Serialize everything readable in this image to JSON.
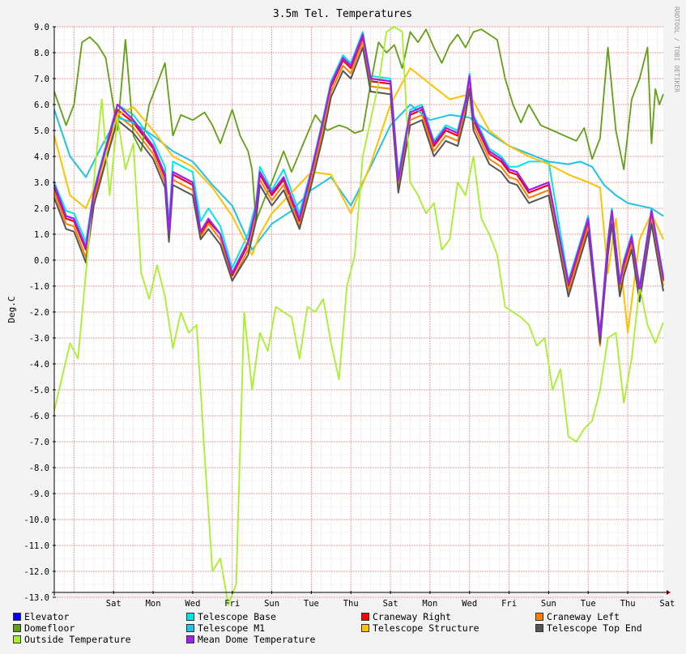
{
  "chart_data": {
    "type": "line",
    "title": "3.5m Tel. Temperatures",
    "ylabel": "Deg.C",
    "watermark": "RRDTOOL / TOBI OETIKER",
    "ylim": [
      -13.3,
      9.0
    ],
    "yticks": [
      "9.0",
      "8.0",
      "7.0",
      "6.0",
      "5.0",
      "4.0",
      "3.0",
      "2.0",
      "1.0",
      "0.0",
      "-1.0",
      "-2.0",
      "-3.0",
      "-4.0",
      "-5.0",
      "-6.0",
      "-7.0",
      "-8.0",
      "-9.0",
      "-10.0",
      "-11.0",
      "-12.0",
      "-13.0"
    ],
    "x_tick_labels": [
      "Sat",
      "Mon",
      "Wed",
      "Fri",
      "Sun",
      "Tue",
      "Thu",
      "Sat",
      "Mon",
      "Wed",
      "Fri",
      "Sun",
      "Tue",
      "Thu",
      "Sat"
    ],
    "x_tick_days": [
      1.5,
      2.5,
      3.5,
      4.5,
      5.5,
      6.5,
      7.5,
      8.5,
      9.5,
      10.5,
      11.5,
      12.5,
      13.5,
      14.5,
      15.5
    ],
    "xlim": [
      0,
      15.4
    ],
    "grid": true,
    "legend_position": "bottom",
    "series": [
      {
        "name": "Elevator",
        "color": "#0000ff",
        "x": [
          0,
          0.3,
          0.5,
          0.8,
          1.0,
          1.3,
          1.6,
          2.0,
          2.5,
          2.8,
          2.9,
          3.0,
          3.5,
          3.7,
          3.9,
          4.2,
          4.5,
          4.9,
          5.1,
          5.2,
          5.5,
          5.8,
          6.2,
          6.5,
          6.8,
          7.0,
          7.3,
          7.5,
          7.8,
          8.0,
          8.5,
          8.7,
          9.0,
          9.3,
          9.6,
          9.9,
          10.2,
          10.4,
          10.5,
          10.6,
          11.0,
          11.3,
          11.5,
          11.7,
          12.0,
          12.5,
          13.0,
          13.5,
          13.8,
          14.0,
          14.1,
          14.3,
          14.4,
          14.6,
          14.8,
          15.1,
          15.4
        ],
        "values": [
          2.8,
          1.6,
          1.5,
          0.4,
          2.5,
          4.2,
          5.8,
          5.3,
          4.3,
          3.2,
          1.0,
          3.3,
          2.9,
          1.0,
          1.5,
          1.0,
          -0.6,
          0.6,
          1.9,
          3.3,
          2.5,
          3.1,
          1.5,
          3.3,
          5.3,
          6.7,
          7.7,
          7.4,
          8.6,
          6.9,
          6.8,
          3.0,
          5.6,
          5.8,
          4.4,
          5.0,
          4.8,
          6.0,
          7.0,
          5.4,
          4.1,
          3.8,
          3.4,
          3.3,
          2.6,
          2.9,
          -1.0,
          1.5,
          -3.0,
          0.6,
          1.8,
          -1.0,
          -0.2,
          0.8,
          -1.2,
          1.8,
          -0.8
        ]
      },
      {
        "name": "Telescope Base",
        "color": "#00e6e6",
        "x": [
          0,
          0.3,
          0.5,
          0.8,
          1.0,
          1.3,
          1.6,
          2.0,
          2.5,
          2.8,
          2.9,
          3.0,
          3.5,
          3.7,
          3.9,
          4.2,
          4.5,
          4.9,
          5.1,
          5.2,
          5.5,
          5.8,
          6.2,
          6.5,
          6.8,
          7.0,
          7.3,
          7.5,
          7.8,
          8.0,
          8.5,
          8.7,
          9.0,
          9.3,
          9.6,
          9.9,
          10.2,
          10.4,
          10.5,
          10.6,
          11.0,
          11.3,
          11.5,
          11.7,
          12.0,
          12.5,
          13.0,
          13.5,
          13.8,
          14.0,
          14.1,
          14.3,
          14.4,
          14.6,
          14.8,
          15.1,
          15.4
        ],
        "values": [
          3.0,
          1.9,
          1.8,
          0.7,
          2.7,
          4.4,
          6.0,
          5.6,
          4.6,
          3.6,
          1.4,
          3.8,
          3.4,
          1.5,
          2.0,
          1.3,
          -0.3,
          1.0,
          2.2,
          3.6,
          2.7,
          3.5,
          1.8,
          3.5,
          5.5,
          6.9,
          7.9,
          7.6,
          8.8,
          7.1,
          7.0,
          3.3,
          5.8,
          6.0,
          4.6,
          5.2,
          5.0,
          6.2,
          7.2,
          5.6,
          4.3,
          4.0,
          3.6,
          3.6,
          3.8,
          3.8,
          -0.8,
          1.7,
          -2.8,
          0.8,
          2.0,
          -0.8,
          0.0,
          1.0,
          -1.0,
          2.0,
          -0.6
        ]
      },
      {
        "name": "Craneway Right",
        "color": "#ff0000",
        "x": [
          0,
          0.3,
          0.5,
          0.8,
          1.0,
          1.3,
          1.6,
          2.0,
          2.5,
          2.8,
          2.9,
          3.0,
          3.5,
          3.7,
          3.9,
          4.2,
          4.5,
          4.9,
          5.1,
          5.2,
          5.5,
          5.8,
          6.2,
          6.5,
          6.8,
          7.0,
          7.3,
          7.5,
          7.8,
          8.0,
          8.5,
          8.7,
          9.0,
          9.3,
          9.6,
          9.9,
          10.2,
          10.4,
          10.5,
          10.6,
          11.0,
          11.3,
          11.5,
          11.7,
          12.0,
          12.5,
          13.0,
          13.5,
          13.8,
          14.0,
          14.1,
          14.3,
          14.4,
          14.6,
          14.8,
          15.1,
          15.4
        ],
        "values": [
          2.8,
          1.6,
          1.5,
          0.4,
          2.5,
          4.2,
          5.8,
          5.3,
          4.3,
          3.2,
          1.0,
          3.3,
          2.9,
          1.0,
          1.5,
          1.0,
          -0.6,
          0.6,
          1.9,
          3.3,
          2.5,
          3.1,
          1.5,
          3.3,
          5.3,
          6.7,
          7.7,
          7.4,
          8.6,
          6.9,
          6.8,
          3.0,
          5.6,
          5.8,
          4.4,
          5.0,
          4.8,
          6.0,
          7.0,
          5.4,
          4.1,
          3.8,
          3.4,
          3.3,
          2.6,
          2.9,
          -1.0,
          1.5,
          -3.0,
          0.6,
          1.8,
          -1.0,
          -0.2,
          0.8,
          -1.2,
          1.8,
          -0.8
        ]
      },
      {
        "name": "Craneway Left",
        "color": "#ff8000",
        "x": [
          0,
          0.3,
          0.5,
          0.8,
          1.0,
          1.3,
          1.6,
          2.0,
          2.5,
          2.8,
          2.9,
          3.0,
          3.5,
          3.7,
          3.9,
          4.2,
          4.5,
          4.9,
          5.1,
          5.2,
          5.5,
          5.8,
          6.2,
          6.5,
          6.8,
          7.0,
          7.3,
          7.5,
          7.8,
          8.0,
          8.5,
          8.7,
          9.0,
          9.3,
          9.6,
          9.9,
          10.2,
          10.4,
          10.5,
          10.6,
          11.0,
          11.3,
          11.5,
          11.7,
          12.0,
          12.5,
          13.0,
          13.5,
          13.8,
          14.0,
          14.1,
          14.3,
          14.4,
          14.6,
          14.8,
          15.1,
          15.4
        ],
        "values": [
          2.6,
          1.4,
          1.3,
          0.1,
          2.3,
          4.0,
          5.6,
          5.1,
          4.1,
          3.0,
          0.9,
          3.1,
          2.7,
          0.9,
          1.4,
          0.8,
          -0.8,
          0.4,
          1.7,
          3.1,
          2.3,
          2.9,
          1.3,
          3.1,
          5.1,
          6.5,
          7.5,
          7.2,
          8.4,
          6.7,
          6.6,
          2.8,
          5.4,
          5.6,
          4.2,
          4.8,
          4.6,
          5.8,
          6.8,
          5.2,
          3.9,
          3.6,
          3.2,
          3.1,
          2.4,
          2.7,
          -1.2,
          1.3,
          -3.3,
          0.4,
          1.6,
          -1.2,
          -0.4,
          0.6,
          -1.4,
          1.6,
          -1.0
        ]
      },
      {
        "name": "Domefloor",
        "color": "#5fa015",
        "x": [
          0,
          0.3,
          0.5,
          0.7,
          0.9,
          1.1,
          1.3,
          1.6,
          1.8,
          2.0,
          2.2,
          2.4,
          2.6,
          2.8,
          3.0,
          3.2,
          3.5,
          3.8,
          4.0,
          4.2,
          4.5,
          4.7,
          4.9,
          5.0,
          5.1,
          5.3,
          5.5,
          5.8,
          6.0,
          6.3,
          6.6,
          6.9,
          7.2,
          7.4,
          7.6,
          7.8,
          8.0,
          8.2,
          8.4,
          8.6,
          8.8,
          9.0,
          9.2,
          9.4,
          9.6,
          9.8,
          10.0,
          10.2,
          10.4,
          10.6,
          10.8,
          11.0,
          11.2,
          11.4,
          11.6,
          11.8,
          12.0,
          12.3,
          12.6,
          12.9,
          13.2,
          13.4,
          13.6,
          13.8,
          14.0,
          14.2,
          14.4,
          14.6,
          14.8,
          15.0,
          15.1,
          15.2,
          15.3,
          15.4
        ],
        "values": [
          6.5,
          5.2,
          6.0,
          8.4,
          8.6,
          8.3,
          7.8,
          5.0,
          8.5,
          4.8,
          4.2,
          6.0,
          6.8,
          7.6,
          4.8,
          5.6,
          5.4,
          5.7,
          5.2,
          4.5,
          5.8,
          4.8,
          4.2,
          3.5,
          1.5,
          2.3,
          3.0,
          4.2,
          3.4,
          4.5,
          5.6,
          5.0,
          5.2,
          5.1,
          4.9,
          5.0,
          6.8,
          8.4,
          8.0,
          8.3,
          7.4,
          8.8,
          8.4,
          8.9,
          8.2,
          7.6,
          8.3,
          8.7,
          8.2,
          8.8,
          8.9,
          8.7,
          8.5,
          7.0,
          6.0,
          5.3,
          6.0,
          5.2,
          5.0,
          4.8,
          4.6,
          5.1,
          3.9,
          4.7,
          8.2,
          5.0,
          3.5,
          6.2,
          7.0,
          8.2,
          4.5,
          6.6,
          6.0,
          6.4
        ]
      },
      {
        "name": "Telescope M1",
        "color": "#1ec3e6",
        "x": [
          0,
          0.4,
          0.8,
          1.2,
          1.6,
          2.0,
          2.5,
          3.0,
          3.5,
          4.0,
          4.5,
          5.0,
          5.5,
          6.0,
          6.5,
          7.0,
          7.5,
          8.0,
          8.5,
          9.0,
          9.5,
          10.0,
          10.5,
          11.0,
          11.5,
          12.0,
          12.5,
          13.0,
          13.3,
          13.6,
          13.9,
          14.2,
          14.5,
          14.8,
          15.1,
          15.4
        ],
        "values": [
          5.8,
          4.0,
          3.2,
          4.4,
          5.5,
          5.3,
          4.8,
          4.2,
          3.8,
          2.9,
          2.1,
          0.4,
          1.4,
          1.9,
          2.7,
          3.2,
          2.1,
          3.6,
          5.2,
          6.0,
          5.4,
          5.6,
          5.5,
          4.9,
          4.4,
          4.1,
          3.8,
          3.7,
          3.8,
          3.6,
          2.9,
          2.5,
          2.2,
          2.1,
          2.0,
          1.7
        ]
      },
      {
        "name": "Telescope Structure",
        "color": "#ffc100",
        "x": [
          0,
          0.4,
          0.8,
          1.2,
          1.6,
          2.0,
          2.5,
          3.0,
          3.5,
          4.0,
          4.5,
          5.0,
          5.2,
          5.5,
          6.0,
          6.5,
          7.0,
          7.5,
          8.0,
          8.5,
          9.0,
          9.5,
          10.0,
          10.5,
          11.0,
          11.5,
          12.0,
          12.5,
          13.0,
          13.5,
          13.8,
          14.0,
          14.2,
          14.5,
          14.8,
          15.1,
          15.4
        ],
        "values": [
          4.8,
          2.5,
          2.0,
          3.5,
          5.6,
          5.9,
          5.0,
          4.0,
          3.6,
          2.8,
          1.7,
          0.2,
          1.0,
          1.8,
          2.6,
          3.4,
          3.3,
          1.8,
          3.7,
          6.0,
          7.4,
          6.8,
          6.2,
          6.4,
          5.0,
          4.4,
          4.0,
          3.7,
          3.3,
          3.0,
          2.8,
          -0.5,
          1.6,
          -2.8,
          0.8,
          1.8,
          0.8
        ]
      },
      {
        "name": "Telescope Top End",
        "color": "#555555",
        "x": [
          0,
          0.3,
          0.5,
          0.8,
          1.0,
          1.3,
          1.6,
          2.0,
          2.5,
          2.8,
          2.9,
          3.0,
          3.5,
          3.7,
          3.9,
          4.2,
          4.5,
          4.9,
          5.1,
          5.2,
          5.5,
          5.8,
          6.2,
          6.5,
          6.8,
          7.0,
          7.3,
          7.5,
          7.8,
          8.0,
          8.5,
          8.7,
          9.0,
          9.3,
          9.6,
          9.9,
          10.2,
          10.4,
          10.5,
          10.6,
          11.0,
          11.3,
          11.5,
          11.7,
          12.0,
          12.5,
          13.0,
          13.5,
          13.8,
          14.0,
          14.1,
          14.3,
          14.4,
          14.6,
          14.8,
          15.1,
          15.4
        ],
        "values": [
          2.4,
          1.2,
          1.1,
          -0.1,
          2.1,
          3.8,
          5.4,
          4.9,
          3.9,
          2.8,
          0.7,
          2.9,
          2.5,
          0.8,
          1.2,
          0.6,
          -0.8,
          0.2,
          1.5,
          2.9,
          2.1,
          2.7,
          1.2,
          2.9,
          4.8,
          6.3,
          7.3,
          7.0,
          8.2,
          6.5,
          6.4,
          2.6,
          5.2,
          5.4,
          4.0,
          4.6,
          4.4,
          5.6,
          6.6,
          5.0,
          3.7,
          3.4,
          3.0,
          2.9,
          2.2,
          2.5,
          -1.4,
          1.1,
          -3.2,
          0.2,
          1.4,
          -1.4,
          -0.6,
          0.4,
          -1.6,
          1.4,
          -1.2
        ]
      },
      {
        "name": "Outside Temperature",
        "color": "#a6f02c",
        "x": [
          0,
          0.2,
          0.4,
          0.6,
          0.8,
          1.0,
          1.2,
          1.4,
          1.6,
          1.8,
          2.0,
          2.2,
          2.4,
          2.6,
          2.8,
          3.0,
          3.2,
          3.4,
          3.6,
          3.8,
          4.0,
          4.2,
          4.4,
          4.6,
          4.8,
          5.0,
          5.2,
          5.4,
          5.6,
          5.8,
          6.0,
          6.2,
          6.4,
          6.6,
          6.8,
          7.0,
          7.2,
          7.4,
          7.6,
          7.8,
          8.0,
          8.2,
          8.4,
          8.6,
          8.8,
          9.0,
          9.2,
          9.4,
          9.6,
          9.8,
          10.0,
          10.2,
          10.4,
          10.6,
          10.8,
          11.0,
          11.2,
          11.4,
          11.6,
          11.8,
          12.0,
          12.2,
          12.4,
          12.6,
          12.8,
          13.0,
          13.2,
          13.4,
          13.6,
          13.8,
          14.0,
          14.2,
          14.4,
          14.6,
          14.8,
          15.0,
          15.2,
          15.4
        ],
        "values": [
          -5.8,
          -4.5,
          -3.2,
          -3.8,
          -0.5,
          3.0,
          6.2,
          2.5,
          5.5,
          3.5,
          4.5,
          -0.5,
          -1.5,
          -0.2,
          -1.4,
          -3.4,
          -2.0,
          -2.8,
          -2.5,
          -7.5,
          -12.0,
          -11.5,
          -13.3,
          -12.5,
          -2.0,
          -5.0,
          -2.8,
          -3.5,
          -1.8,
          -2.0,
          -2.2,
          -3.8,
          -1.8,
          -2.0,
          -1.5,
          -3.2,
          -4.6,
          -1.0,
          0.2,
          4.0,
          5.4,
          6.8,
          8.8,
          9.0,
          8.8,
          3.0,
          2.5,
          1.8,
          2.2,
          0.4,
          0.8,
          3.0,
          2.5,
          4.0,
          1.6,
          1.0,
          0.2,
          -1.8,
          -2.0,
          -2.2,
          -2.5,
          -3.3,
          -3.0,
          -5.0,
          -4.2,
          -6.8,
          -7.0,
          -6.5,
          -6.2,
          -5.0,
          -3.0,
          -2.8,
          -5.5,
          -3.8,
          -1.0,
          -2.5,
          -3.2,
          -2.4
        ]
      },
      {
        "name": "Mean Dome Temperature",
        "color": "#a020f0",
        "x": [
          0,
          0.3,
          0.5,
          0.8,
          1.0,
          1.3,
          1.6,
          2.0,
          2.5,
          2.8,
          2.9,
          3.0,
          3.5,
          3.7,
          3.9,
          4.2,
          4.5,
          4.9,
          5.1,
          5.2,
          5.5,
          5.8,
          6.2,
          6.5,
          6.8,
          7.0,
          7.3,
          7.5,
          7.8,
          8.0,
          8.5,
          8.7,
          9.0,
          9.3,
          9.6,
          9.9,
          10.2,
          10.4,
          10.5,
          10.6,
          11.0,
          11.3,
          11.5,
          11.7,
          12.0,
          12.5,
          13.0,
          13.5,
          13.8,
          14.0,
          14.1,
          14.3,
          14.4,
          14.6,
          14.8,
          15.1,
          15.4
        ],
        "values": [
          2.9,
          1.7,
          1.6,
          0.5,
          2.6,
          4.3,
          6.0,
          5.4,
          4.4,
          3.3,
          1.1,
          3.4,
          3.0,
          1.1,
          1.6,
          1.0,
          -0.5,
          0.7,
          2.0,
          3.4,
          2.6,
          3.2,
          1.6,
          3.4,
          5.4,
          6.8,
          7.8,
          7.5,
          8.7,
          7.0,
          6.9,
          3.1,
          5.7,
          5.9,
          4.5,
          5.1,
          4.9,
          6.1,
          7.1,
          5.5,
          4.2,
          3.9,
          3.5,
          3.4,
          2.7,
          3.0,
          -0.9,
          1.6,
          -2.9,
          0.7,
          1.9,
          -0.9,
          -0.1,
          0.9,
          -1.1,
          1.9,
          -0.7
        ]
      }
    ]
  }
}
